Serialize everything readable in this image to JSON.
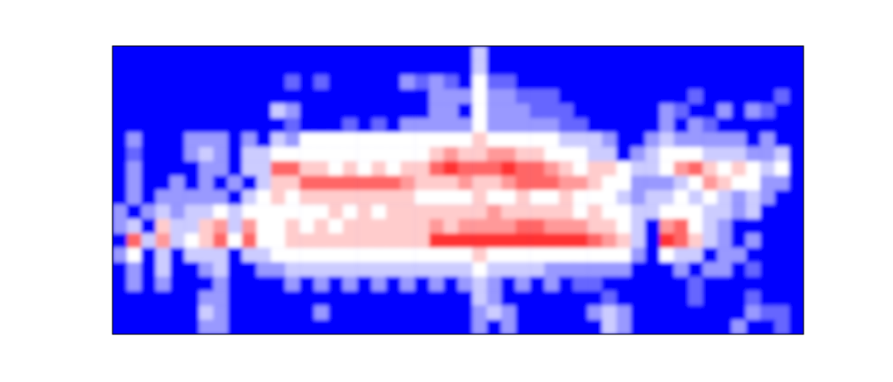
{
  "chart_data": {
    "type": "heatmap",
    "tick_labels": false,
    "zlim": [
      0,
      10
    ],
    "cells": [
      [
        0,
        0,
        0,
        0,
        0,
        0,
        0,
        0,
        0,
        0,
        0,
        0,
        0,
        0,
        0,
        0,
        0,
        0,
        0,
        0,
        0,
        0,
        0,
        0,
        0,
        4,
        0,
        0,
        0,
        0,
        0,
        0,
        0,
        0,
        0,
        0,
        0,
        0,
        0,
        0,
        0,
        0,
        0,
        0,
        0,
        0,
        0,
        0
      ],
      [
        0,
        0,
        0,
        0,
        0,
        0,
        0,
        0,
        0,
        0,
        0,
        0,
        0,
        0,
        0,
        0,
        0,
        0,
        0,
        0,
        0,
        0,
        0,
        0,
        0,
        4,
        0,
        0,
        0,
        0,
        0,
        0,
        0,
        0,
        0,
        0,
        0,
        0,
        0,
        0,
        0,
        0,
        0,
        0,
        0,
        0,
        0,
        0
      ],
      [
        0,
        0,
        0,
        0,
        0,
        0,
        0,
        0,
        0,
        0,
        0,
        0,
        2,
        0,
        2,
        0,
        0,
        0,
        0,
        0,
        3,
        2,
        3,
        2,
        0,
        5,
        2,
        2,
        0,
        0,
        0,
        0,
        0,
        0,
        0,
        0,
        0,
        0,
        0,
        0,
        0,
        0,
        0,
        0,
        0,
        0,
        0,
        0
      ],
      [
        0,
        0,
        0,
        0,
        0,
        0,
        0,
        0,
        0,
        0,
        0,
        0,
        0,
        0,
        0,
        0,
        0,
        0,
        0,
        0,
        0,
        0,
        3,
        3,
        3,
        5,
        3,
        3,
        2,
        2,
        2,
        0,
        0,
        0,
        0,
        0,
        0,
        0,
        0,
        0,
        2,
        0,
        0,
        0,
        0,
        0,
        2,
        0
      ],
      [
        0,
        0,
        0,
        0,
        0,
        0,
        0,
        0,
        0,
        0,
        0,
        4,
        3,
        0,
        0,
        0,
        0,
        0,
        0,
        0,
        0,
        0,
        3,
        3,
        0,
        5,
        3,
        3,
        3,
        2,
        2,
        2,
        0,
        0,
        0,
        0,
        0,
        0,
        3,
        2,
        0,
        0,
        3,
        0,
        3,
        2,
        0,
        0
      ],
      [
        0,
        0,
        0,
        0,
        0,
        0,
        0,
        0,
        0,
        0,
        0,
        0,
        2,
        0,
        0,
        0,
        2,
        0,
        2,
        0,
        3,
        3,
        3,
        3,
        3,
        5,
        3,
        3,
        3,
        3,
        3,
        2,
        2,
        0,
        0,
        0,
        0,
        0,
        3,
        0,
        3,
        2,
        0,
        0,
        0,
        0,
        0,
        0
      ],
      [
        0,
        3,
        0,
        0,
        0,
        3,
        3,
        3,
        0,
        3,
        0,
        4,
        3,
        5,
        5,
        5,
        5,
        5,
        5,
        5,
        5,
        5,
        5,
        5,
        5,
        6,
        5,
        5,
        5,
        5,
        5,
        4,
        4,
        4,
        3,
        0,
        0,
        3,
        4,
        3,
        3,
        3,
        3,
        3,
        0,
        3,
        0,
        0
      ],
      [
        0,
        2,
        0,
        0,
        0,
        3,
        4,
        3,
        0,
        4,
        4,
        5,
        5,
        5,
        5,
        5,
        5,
        5,
        5,
        5,
        5,
        5,
        6,
        7,
        6,
        6,
        7,
        7,
        6,
        6,
        5,
        5,
        5,
        4,
        4,
        0,
        3,
        4,
        5,
        5,
        5,
        4,
        4,
        4,
        3,
        3,
        4,
        0
      ],
      [
        0,
        3,
        0,
        0,
        0,
        0,
        3,
        3,
        0,
        4,
        4,
        8,
        8,
        6,
        6,
        5,
        6,
        5,
        6,
        5,
        6,
        6,
        8,
        9,
        8,
        8,
        8,
        9,
        8,
        8,
        7,
        6,
        5,
        6,
        6,
        5,
        4,
        4,
        5,
        7,
        8,
        6,
        5,
        6,
        5,
        4,
        5,
        0
      ],
      [
        0,
        3,
        0,
        0,
        3,
        0,
        3,
        0,
        3,
        0,
        4,
        6,
        6,
        8,
        8,
        8,
        8,
        8,
        8,
        8,
        7,
        6,
        6,
        6,
        7,
        6,
        6,
        7,
        8,
        8,
        8,
        7,
        7,
        6,
        5,
        5,
        3,
        3,
        3,
        4,
        5,
        7,
        6,
        5,
        5,
        3,
        3,
        0
      ],
      [
        0,
        3,
        0,
        3,
        3,
        3,
        3,
        3,
        0,
        4,
        5,
        6,
        5,
        6,
        6,
        6,
        6,
        6,
        6,
        6,
        6,
        5,
        5,
        5,
        5,
        6,
        5,
        5,
        6,
        5,
        5,
        6,
        5,
        5,
        5,
        4,
        3,
        4,
        4,
        5,
        4,
        5,
        4,
        3,
        4,
        3,
        0,
        0
      ],
      [
        3,
        0,
        3,
        4,
        3,
        4,
        4,
        5,
        4,
        5,
        5,
        5,
        5,
        5,
        5,
        6,
        5,
        6,
        5,
        6,
        6,
        6,
        6,
        6,
        6,
        6,
        7,
        6,
        6,
        6,
        6,
        6,
        5,
        6,
        5,
        5,
        4,
        4,
        5,
        5,
        5,
        4,
        4,
        3,
        4,
        0,
        0,
        0
      ],
      [
        3,
        4,
        0,
        6,
        4,
        4,
        6,
        7,
        4,
        7,
        5,
        5,
        6,
        5,
        6,
        5,
        6,
        6,
        6,
        6,
        6,
        6,
        7,
        6,
        7,
        7,
        7,
        7,
        8,
        8,
        7,
        7,
        7,
        6,
        6,
        5,
        4,
        0,
        7,
        8,
        5,
        4,
        3,
        0,
        0,
        0,
        0,
        0
      ],
      [
        0,
        8,
        4,
        7,
        4,
        5,
        6,
        8,
        5,
        8,
        5,
        5,
        6,
        6,
        6,
        6,
        6,
        6,
        6,
        6,
        6,
        6,
        9,
        9,
        9,
        9,
        9,
        9,
        9,
        9,
        9,
        9,
        9,
        8,
        7,
        6,
        4,
        0,
        9,
        8,
        6,
        4,
        3,
        0,
        3,
        0,
        0,
        0
      ],
      [
        3,
        5,
        0,
        4,
        0,
        4,
        4,
        4,
        0,
        4,
        4,
        5,
        5,
        5,
        5,
        5,
        5,
        5,
        5,
        5,
        5,
        5,
        5,
        5,
        5,
        6,
        5,
        5,
        5,
        5,
        5,
        5,
        5,
        5,
        5,
        5,
        3,
        0,
        5,
        4,
        4,
        0,
        3,
        3,
        0,
        0,
        0,
        0
      ],
      [
        0,
        3,
        0,
        4,
        0,
        0,
        3,
        4,
        0,
        0,
        3,
        3,
        4,
        4,
        4,
        4,
        4,
        4,
        4,
        4,
        4,
        4,
        4,
        4,
        4,
        5,
        4,
        4,
        4,
        4,
        3,
        3,
        3,
        3,
        3,
        3,
        0,
        0,
        0,
        3,
        0,
        3,
        3,
        0,
        2,
        0,
        0,
        0
      ],
      [
        0,
        3,
        0,
        3,
        0,
        0,
        0,
        3,
        0,
        0,
        0,
        0,
        3,
        0,
        3,
        0,
        3,
        0,
        3,
        0,
        3,
        0,
        3,
        0,
        3,
        4,
        3,
        0,
        3,
        0,
        3,
        0,
        2,
        2,
        0,
        0,
        0,
        0,
        0,
        0,
        2,
        0,
        0,
        0,
        0,
        0,
        0,
        0
      ],
      [
        0,
        0,
        0,
        0,
        0,
        0,
        3,
        3,
        0,
        0,
        0,
        0,
        0,
        0,
        0,
        0,
        0,
        0,
        0,
        0,
        0,
        0,
        0,
        0,
        0,
        4,
        3,
        0,
        0,
        0,
        0,
        0,
        0,
        0,
        2,
        0,
        0,
        0,
        0,
        0,
        2,
        0,
        0,
        0,
        2,
        0,
        0,
        0
      ],
      [
        0,
        0,
        0,
        0,
        0,
        0,
        4,
        3,
        0,
        0,
        0,
        0,
        0,
        0,
        3,
        0,
        0,
        0,
        0,
        0,
        0,
        0,
        0,
        0,
        0,
        3,
        4,
        3,
        0,
        0,
        0,
        0,
        0,
        3,
        4,
        3,
        0,
        0,
        0,
        0,
        0,
        0,
        0,
        0,
        3,
        2,
        2,
        0
      ],
      [
        0,
        0,
        0,
        0,
        0,
        0,
        3,
        3,
        0,
        0,
        0,
        0,
        0,
        0,
        0,
        0,
        0,
        0,
        0,
        0,
        0,
        0,
        0,
        0,
        0,
        3,
        0,
        3,
        0,
        0,
        0,
        0,
        0,
        0,
        4,
        3,
        0,
        0,
        0,
        0,
        0,
        0,
        0,
        3,
        0,
        0,
        2,
        0
      ]
    ]
  }
}
